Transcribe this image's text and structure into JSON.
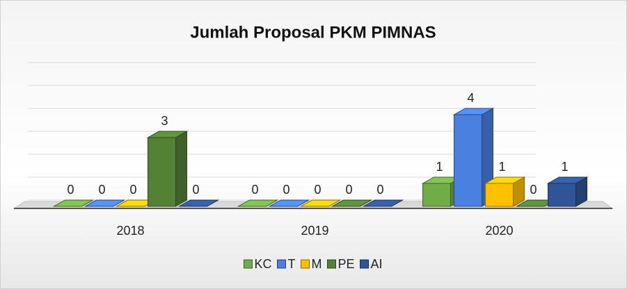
{
  "chart_data": {
    "type": "bar3d",
    "title": "Jumlah Proposal PKM PIMNAS",
    "categories": [
      "2018",
      "2019",
      "2020"
    ],
    "series": [
      {
        "name": "KC",
        "color": "#70ad47",
        "values": [
          0,
          0,
          1
        ]
      },
      {
        "name": "T",
        "color": "#4a80e0",
        "values": [
          0,
          0,
          4
        ]
      },
      {
        "name": "M",
        "color": "#ffc000",
        "values": [
          0,
          0,
          1
        ]
      },
      {
        "name": "PE",
        "color": "#548235",
        "values": [
          3,
          0,
          0
        ]
      },
      {
        "name": "AI",
        "color": "#2f5597",
        "values": [
          0,
          0,
          1
        ]
      }
    ],
    "ylim": [
      0,
      6
    ],
    "yticks": [
      0,
      1,
      2,
      3,
      4,
      5,
      6
    ],
    "grid": true,
    "legend": "bottom"
  }
}
